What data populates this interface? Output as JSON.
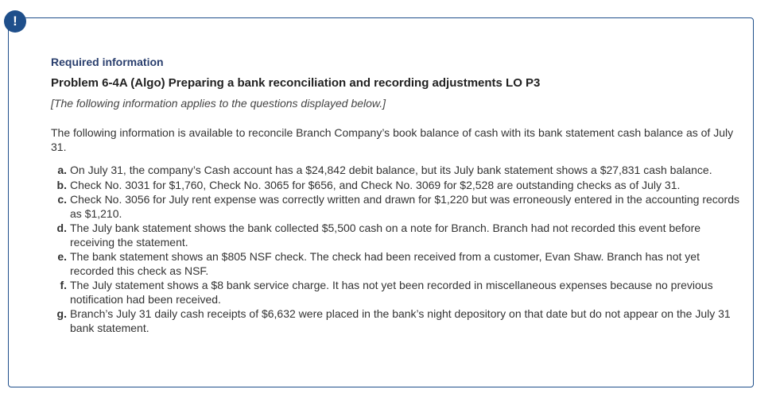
{
  "icon": {
    "name": "alert-exclamation-icon",
    "glyph": "!",
    "color": "#1f4f8b"
  },
  "header": {
    "required": "Required information",
    "title": "Problem 6-4A (Algo) Preparing a bank reconciliation and recording adjustments LO P3",
    "note": "[The following information applies to the questions displayed below.]"
  },
  "intro": "The following information is available to reconcile Branch Company’s book balance of cash with its bank statement cash balance as of July 31.",
  "items": [
    {
      "label": "a.",
      "text": "On July 31, the company’s Cash account has a $24,842 debit balance, but its July bank statement shows a $27,831 cash balance."
    },
    {
      "label": "b.",
      "text": "Check No. 3031 for $1,760, Check No. 3065 for $656, and Check No. 3069 for $2,528 are outstanding checks as of July 31."
    },
    {
      "label": "c.",
      "text": "Check No. 3056 for July rent expense was correctly written and drawn for $1,220 but was erroneously entered in the accounting records as $1,210."
    },
    {
      "label": "d.",
      "text": "The July bank statement shows the bank collected $5,500 cash on a note for Branch. Branch had not recorded this event before receiving the statement."
    },
    {
      "label": "e.",
      "text": "The bank statement shows an $805 NSF check. The check had been received from a customer, Evan Shaw. Branch has not yet recorded this check as NSF."
    },
    {
      "label": "f.",
      "text": "The July statement shows a $8 bank service charge. It has not yet been recorded in miscellaneous expenses because no previous notification had been received."
    },
    {
      "label": "g.",
      "text": "Branch’s July 31 daily cash receipts of $6,632 were placed in the bank’s night depository on that date but do not appear on the July 31 bank statement."
    }
  ]
}
